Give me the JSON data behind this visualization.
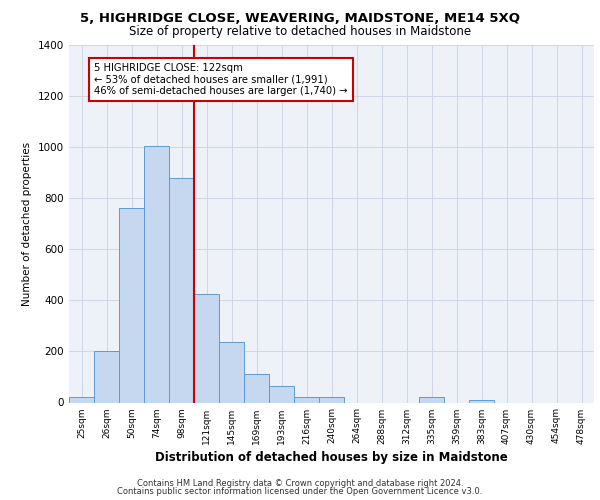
{
  "title_line1": "5, HIGHRIDGE CLOSE, WEAVERING, MAIDSTONE, ME14 5XQ",
  "title_line2": "Size of property relative to detached houses in Maidstone",
  "xlabel": "Distribution of detached houses by size in Maidstone",
  "ylabel": "Number of detached properties",
  "categories": [
    "25sqm",
    "26sqm",
    "50sqm",
    "74sqm",
    "98sqm",
    "121sqm",
    "145sqm",
    "169sqm",
    "193sqm",
    "216sqm",
    "240sqm",
    "264sqm",
    "288sqm",
    "312sqm",
    "335sqm",
    "359sqm",
    "383sqm",
    "407sqm",
    "430sqm",
    "454sqm",
    "478sqm"
  ],
  "values": [
    20,
    200,
    760,
    1005,
    880,
    425,
    235,
    110,
    65,
    20,
    20,
    0,
    0,
    0,
    20,
    0,
    10,
    0,
    0,
    0,
    0
  ],
  "bar_color": "#c5d8f0",
  "bar_edge_color": "#5b9bd5",
  "grid_color": "#d0d8e8",
  "background_color": "#eef2f8",
  "vline_idx": 5,
  "vline_color": "#cc0000",
  "annotation_text": "5 HIGHRIDGE CLOSE: 122sqm\n← 53% of detached houses are smaller (1,991)\n46% of semi-detached houses are larger (1,740) →",
  "annotation_box_color": "#ffffff",
  "annotation_box_edge": "#cc0000",
  "ylim": [
    0,
    1400
  ],
  "yticks": [
    0,
    200,
    400,
    600,
    800,
    1000,
    1200,
    1400
  ],
  "footer_line1": "Contains HM Land Registry data © Crown copyright and database right 2024.",
  "footer_line2": "Contains public sector information licensed under the Open Government Licence v3.0."
}
